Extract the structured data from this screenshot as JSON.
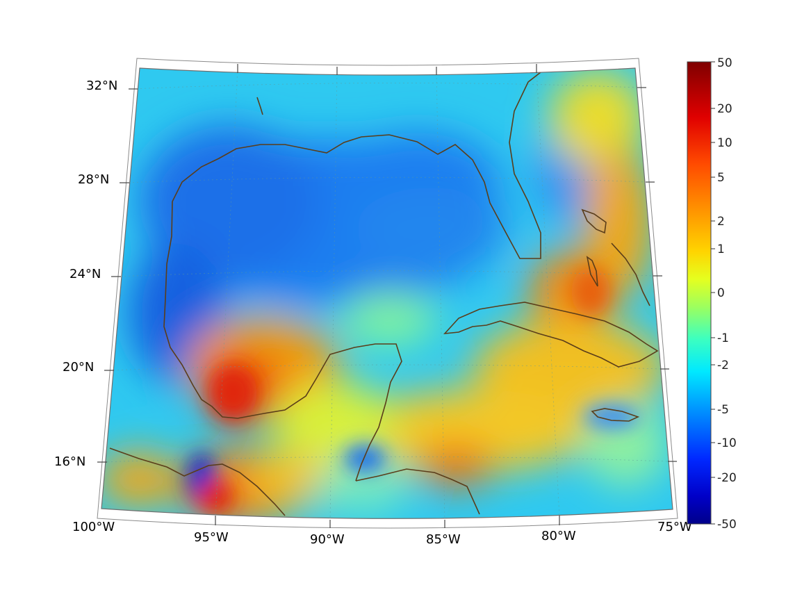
{
  "map": {
    "longitude_labels": [
      "100°W",
      "95°W",
      "90°W",
      "85°W",
      "80°W",
      "75°W"
    ],
    "latitude_labels": [
      "32°N",
      "28°N",
      "24°N",
      "20°N",
      "16°N"
    ],
    "extent": {
      "lon_min": -100,
      "lon_max": -75,
      "lat_min": 14,
      "lat_max": 33
    },
    "projection": "conic (fan-shaped)",
    "grid": true,
    "coastline_color": "#5a3d1a"
  },
  "colorbar": {
    "tick_labels": [
      "50",
      "20",
      "10",
      "5",
      "2",
      "1",
      "0",
      "-1",
      "-2",
      "-5",
      "-10",
      "-20",
      "-50"
    ],
    "range": [
      -50,
      50
    ],
    "colormap": "jet",
    "placement": "right"
  },
  "colors": {
    "cold": "#0a3fd6",
    "neutral": "#45e6c8",
    "warm": "#f5a300",
    "hot": "#e83a06"
  }
}
